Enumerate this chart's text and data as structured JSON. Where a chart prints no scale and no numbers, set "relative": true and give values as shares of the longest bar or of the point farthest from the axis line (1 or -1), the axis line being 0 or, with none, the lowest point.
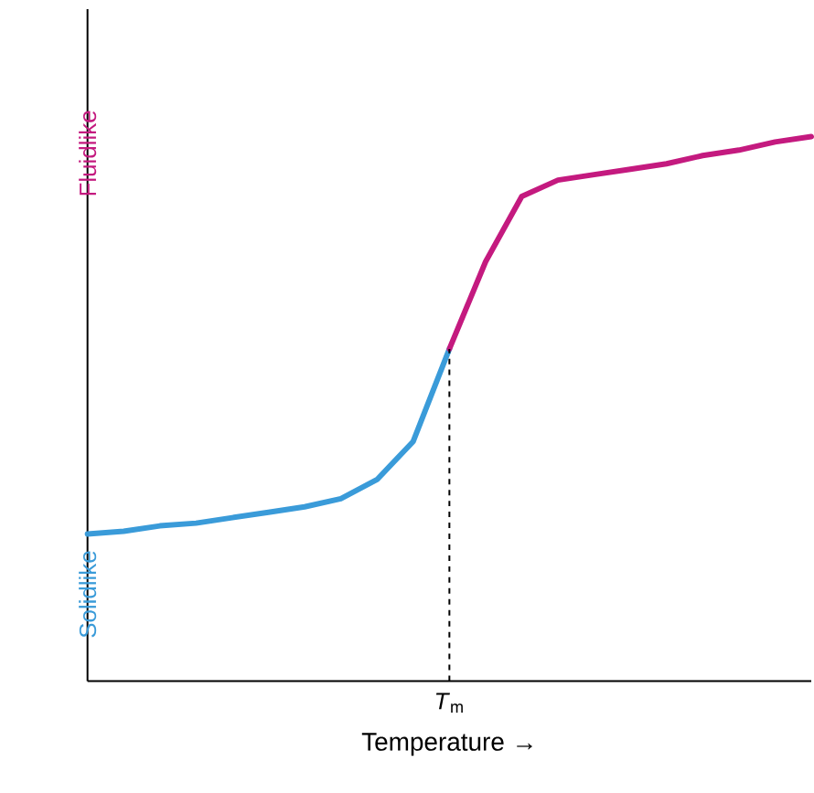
{
  "chart_data": {
    "type": "line",
    "relative": true,
    "xlabel": "Temperature →",
    "categories": [
      null,
      null,
      null,
      null,
      null,
      null,
      null,
      null,
      null,
      null,
      null,
      null,
      null,
      null,
      null,
      null,
      null,
      null,
      null,
      null,
      null
    ],
    "annotations": [
      "Solidlike",
      "Fluidlike",
      "*T*$_{m}$"
    ],
    "series": [
      {
        "color": "#3a9bd9",
        "values": [
          0.27,
          0.275,
          0.285,
          0.29,
          0.3,
          0.31,
          0.32,
          0.335,
          0.37,
          0.44,
          0.61,
          null,
          null,
          null,
          null,
          null,
          null,
          null,
          null,
          null,
          null
        ]
      },
      {
        "color": "#c41a7f",
        "values": [
          null,
          null,
          null,
          null,
          null,
          null,
          null,
          null,
          null,
          null,
          0.61,
          0.77,
          0.89,
          0.92,
          0.93,
          0.94,
          0.95,
          0.965,
          0.975,
          0.99,
          1
        ]
      }
    ],
    "marker": "none",
    "line_style": "solid"
  }
}
